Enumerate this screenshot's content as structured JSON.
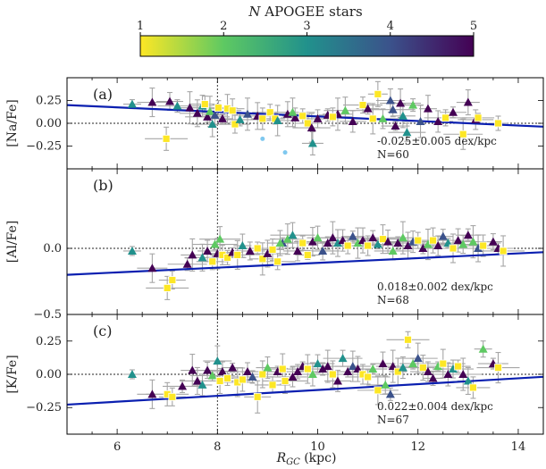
{
  "chart_data": [
    {
      "type": "scatter",
      "panel": "(a)",
      "ylabel": "[Na/Fe]",
      "xlim": [
        5,
        14.5
      ],
      "ylim": [
        -0.5,
        0.5
      ],
      "yticks": [
        0.25,
        0.0,
        -0.25
      ],
      "ytick_labels": [
        "0.25",
        "0.00",
        "−0.25"
      ],
      "vline_x": 8,
      "hline_y": 0,
      "fit": {
        "slope": -0.025,
        "intercept": 0.2,
        "label": "-0.025±0.005 dex/kpc"
      },
      "n_label": "N=60",
      "outliers": [
        [
          8.9,
          -0.17
        ],
        [
          9.35,
          -0.32
        ]
      ],
      "points": [
        [
          6.3,
          0.21,
          3
        ],
        [
          6.7,
          0.23,
          5
        ],
        [
          6.98,
          -0.17,
          1
        ],
        [
          7.05,
          0.24,
          5
        ],
        [
          7.2,
          0.19,
          3
        ],
        [
          7.45,
          0.17,
          5
        ],
        [
          7.6,
          0.11,
          5
        ],
        [
          7.7,
          0.19,
          3
        ],
        [
          7.75,
          0.21,
          1
        ],
        [
          7.8,
          0.07,
          5
        ],
        [
          7.85,
          0.13,
          2
        ],
        [
          7.9,
          -0.01,
          3
        ],
        [
          7.95,
          0.09,
          4
        ],
        [
          8.02,
          0.17,
          1
        ],
        [
          8.1,
          0.05,
          5
        ],
        [
          8.2,
          0.16,
          1
        ],
        [
          8.3,
          0.14,
          1
        ],
        [
          8.35,
          -0.01,
          1
        ],
        [
          8.45,
          0.04,
          3
        ],
        [
          8.6,
          0.1,
          4
        ],
        [
          8.8,
          0.08,
          5
        ],
        [
          8.9,
          0.05,
          1
        ],
        [
          9.05,
          0.12,
          1
        ],
        [
          9.15,
          0.05,
          1
        ],
        [
          9.2,
          0.03,
          3
        ],
        [
          9.4,
          0.1,
          5
        ],
        [
          9.55,
          0.06,
          5
        ],
        [
          9.7,
          0.08,
          1
        ],
        [
          9.8,
          0.0,
          1
        ],
        [
          9.88,
          -0.05,
          5
        ],
        [
          9.9,
          -0.22,
          3
        ],
        [
          10.0,
          0.05,
          5
        ],
        [
          10.2,
          0.09,
          5
        ],
        [
          10.4,
          0.1,
          5
        ],
        [
          10.55,
          0.14,
          2
        ],
        [
          10.7,
          0.02,
          5
        ],
        [
          10.9,
          0.2,
          1
        ],
        [
          11.0,
          0.16,
          5
        ],
        [
          11.1,
          0.05,
          1
        ],
        [
          11.2,
          0.32,
          1
        ],
        [
          11.3,
          0.05,
          2
        ],
        [
          11.5,
          0.15,
          4
        ],
        [
          11.55,
          -0.03,
          5
        ],
        [
          11.65,
          0.22,
          5
        ],
        [
          11.7,
          0.08,
          3
        ],
        [
          11.78,
          -0.1,
          3
        ],
        [
          11.9,
          0.2,
          2
        ],
        [
          12.05,
          0.02,
          4
        ],
        [
          12.2,
          0.16,
          5
        ],
        [
          12.4,
          0.02,
          5
        ],
        [
          12.55,
          0.06,
          1
        ],
        [
          12.7,
          0.12,
          5
        ],
        [
          12.9,
          -0.12,
          1
        ],
        [
          13.0,
          0.23,
          5
        ],
        [
          13.15,
          0.04,
          5
        ],
        [
          13.6,
          0.0,
          1
        ],
        [
          13.2,
          0.06,
          1
        ],
        [
          9.5,
          0.12,
          2
        ],
        [
          11.45,
          0.25,
          4
        ],
        [
          10.3,
          0.07,
          1
        ]
      ]
    },
    {
      "type": "scatter",
      "panel": "(b)",
      "ylabel": "[Al/Fe]",
      "xlim": [
        5,
        14.5
      ],
      "ylim": [
        -0.5,
        0.5
      ],
      "yticks": [
        0.0,
        -0.5
      ],
      "ytick_labels": [
        "0.0",
        "−0.5"
      ],
      "vline_x": 8,
      "hline_y": 0,
      "fit": {
        "slope": 0.018,
        "intercept": -0.2,
        "label": "0.018±0.002 dex/kpc"
      },
      "n_label": "N=68",
      "points": [
        [
          6.3,
          -0.02,
          3
        ],
        [
          6.7,
          -0.15,
          5
        ],
        [
          7.0,
          -0.3,
          1
        ],
        [
          7.1,
          -0.24,
          1
        ],
        [
          7.4,
          -0.12,
          5
        ],
        [
          7.5,
          -0.05,
          5
        ],
        [
          7.7,
          -0.07,
          3
        ],
        [
          7.8,
          -0.02,
          5
        ],
        [
          7.9,
          -0.1,
          1
        ],
        [
          7.95,
          0.03,
          2
        ],
        [
          8.0,
          -0.04,
          5
        ],
        [
          8.05,
          0.07,
          2
        ],
        [
          8.1,
          -0.05,
          1
        ],
        [
          8.2,
          -0.07,
          1
        ],
        [
          8.3,
          -0.03,
          5
        ],
        [
          8.4,
          -0.05,
          1
        ],
        [
          8.5,
          0.02,
          3
        ],
        [
          8.65,
          -0.02,
          5
        ],
        [
          8.8,
          0.0,
          1
        ],
        [
          8.9,
          -0.08,
          1
        ],
        [
          9.0,
          -0.04,
          5
        ],
        [
          9.1,
          -0.01,
          1
        ],
        [
          9.2,
          -0.1,
          1
        ],
        [
          9.3,
          0.04,
          4
        ],
        [
          9.4,
          0.07,
          2
        ],
        [
          9.5,
          0.1,
          3
        ],
        [
          9.6,
          -0.02,
          5
        ],
        [
          9.7,
          0.04,
          1
        ],
        [
          9.8,
          -0.05,
          1
        ],
        [
          9.9,
          0.05,
          5
        ],
        [
          10.0,
          0.08,
          2
        ],
        [
          10.1,
          -0.02,
          4
        ],
        [
          10.2,
          0.04,
          5
        ],
        [
          10.3,
          0.08,
          5
        ],
        [
          10.4,
          0.04,
          3
        ],
        [
          10.5,
          0.06,
          5
        ],
        [
          10.6,
          0.02,
          1
        ],
        [
          10.7,
          0.09,
          4
        ],
        [
          10.8,
          0.04,
          2
        ],
        [
          10.9,
          0.06,
          5
        ],
        [
          11.0,
          0.02,
          1
        ],
        [
          11.1,
          0.08,
          5
        ],
        [
          11.2,
          0.03,
          3
        ],
        [
          11.3,
          0.07,
          1
        ],
        [
          11.4,
          0.05,
          5
        ],
        [
          11.5,
          -0.02,
          2
        ],
        [
          11.6,
          0.04,
          5
        ],
        [
          11.7,
          0.08,
          2
        ],
        [
          11.8,
          0.02,
          5
        ],
        [
          11.9,
          0.05,
          4
        ],
        [
          12.0,
          0.06,
          1
        ],
        [
          12.1,
          0.0,
          5
        ],
        [
          12.2,
          0.03,
          2
        ],
        [
          12.3,
          0.06,
          1
        ],
        [
          12.4,
          0.02,
          5
        ],
        [
          12.5,
          0.09,
          4
        ],
        [
          12.6,
          0.04,
          3
        ],
        [
          12.7,
          0.0,
          1
        ],
        [
          12.8,
          0.06,
          5
        ],
        [
          12.9,
          0.03,
          2
        ],
        [
          13.0,
          0.1,
          5
        ],
        [
          13.1,
          0.05,
          2
        ],
        [
          13.2,
          0.0,
          4
        ],
        [
          13.3,
          0.02,
          1
        ],
        [
          13.5,
          0.05,
          5
        ],
        [
          13.6,
          0.0,
          5
        ],
        [
          13.7,
          -0.02,
          1
        ],
        [
          9.25,
          0.04,
          2
        ]
      ]
    },
    {
      "type": "scatter",
      "panel": "(c)",
      "ylabel": "[K/Fe]",
      "xlim": [
        5,
        14.5
      ],
      "ylim": [
        -0.45,
        0.45
      ],
      "yticks": [
        0.25,
        0.0,
        -0.25
      ],
      "ytick_labels": [
        "0.25",
        "0.00",
        "−0.25"
      ],
      "vline_x": 8,
      "hline_y": 0,
      "fit": {
        "slope": 0.022,
        "intercept": -0.228,
        "label": "0.022±0.004 dex/kpc"
      },
      "n_label": "N=67",
      "points": [
        [
          6.3,
          0.0,
          3
        ],
        [
          6.7,
          -0.15,
          5
        ],
        [
          7.0,
          -0.15,
          1
        ],
        [
          7.1,
          -0.17,
          1
        ],
        [
          7.3,
          -0.09,
          5
        ],
        [
          7.5,
          0.03,
          5
        ],
        [
          7.6,
          -0.05,
          5
        ],
        [
          7.7,
          -0.08,
          3
        ],
        [
          7.8,
          0.03,
          5
        ],
        [
          7.9,
          -0.01,
          2
        ],
        [
          8.0,
          0.1,
          3
        ],
        [
          8.05,
          -0.05,
          1
        ],
        [
          8.1,
          0.02,
          5
        ],
        [
          8.2,
          -0.03,
          1
        ],
        [
          8.3,
          0.05,
          5
        ],
        [
          8.4,
          -0.06,
          1
        ],
        [
          8.5,
          -0.04,
          1
        ],
        [
          8.6,
          0.02,
          5
        ],
        [
          8.7,
          -0.02,
          4
        ],
        [
          8.8,
          -0.17,
          1
        ],
        [
          8.9,
          0.0,
          1
        ],
        [
          9.0,
          0.05,
          2
        ],
        [
          9.1,
          -0.08,
          1
        ],
        [
          9.2,
          0.02,
          5
        ],
        [
          9.3,
          0.04,
          1
        ],
        [
          9.35,
          -0.05,
          1
        ],
        [
          9.5,
          -0.02,
          5
        ],
        [
          9.6,
          0.02,
          5
        ],
        [
          9.7,
          0.06,
          5
        ],
        [
          9.8,
          0.04,
          1
        ],
        [
          9.9,
          0.0,
          2
        ],
        [
          10.0,
          0.08,
          3
        ],
        [
          10.1,
          0.04,
          5
        ],
        [
          10.2,
          0.06,
          5
        ],
        [
          10.3,
          0.0,
          1
        ],
        [
          10.4,
          -0.05,
          5
        ],
        [
          10.5,
          0.12,
          3
        ],
        [
          10.6,
          0.02,
          5
        ],
        [
          10.7,
          0.06,
          4
        ],
        [
          10.8,
          0.04,
          5
        ],
        [
          10.9,
          0.0,
          1
        ],
        [
          11.0,
          -0.02,
          1
        ],
        [
          11.1,
          0.04,
          2
        ],
        [
          11.2,
          -0.12,
          1
        ],
        [
          11.3,
          0.08,
          5
        ],
        [
          11.35,
          -0.08,
          2
        ],
        [
          11.45,
          -0.15,
          4
        ],
        [
          11.5,
          0.06,
          5
        ],
        [
          11.6,
          0.02,
          1
        ],
        [
          11.7,
          0.05,
          3
        ],
        [
          11.8,
          0.26,
          1
        ],
        [
          11.9,
          0.08,
          2
        ],
        [
          12.0,
          0.12,
          4
        ],
        [
          12.1,
          0.05,
          1
        ],
        [
          12.2,
          0.02,
          5
        ],
        [
          12.3,
          -0.03,
          5
        ],
        [
          12.4,
          0.06,
          2
        ],
        [
          12.5,
          0.08,
          1
        ],
        [
          12.6,
          0.0,
          5
        ],
        [
          12.7,
          0.04,
          3
        ],
        [
          12.8,
          0.06,
          1
        ],
        [
          12.9,
          0.0,
          5
        ],
        [
          13.0,
          -0.05,
          3
        ],
        [
          13.1,
          -0.1,
          1
        ],
        [
          13.3,
          0.19,
          2
        ],
        [
          13.5,
          0.08,
          5
        ],
        [
          13.6,
          0.05,
          1
        ]
      ]
    }
  ],
  "colorbar": {
    "title_italic": "N",
    "title_rest": " APOGEE stars",
    "min": 1,
    "max": 5,
    "ticks": [
      "1",
      "2",
      "3",
      "4",
      "5"
    ],
    "colormap": "viridis_r"
  },
  "x_axis": {
    "label_italic": "R",
    "label_sub": "GC",
    "label_rest": " (kpc)",
    "ticks": [
      "6",
      "8",
      "10",
      "12",
      "14"
    ]
  },
  "colors": {
    "fit_line": "#0a1fb0",
    "errorbar": "#a6a6a6",
    "outlier": "#7fc8ef",
    "reference_line": "#222222"
  }
}
